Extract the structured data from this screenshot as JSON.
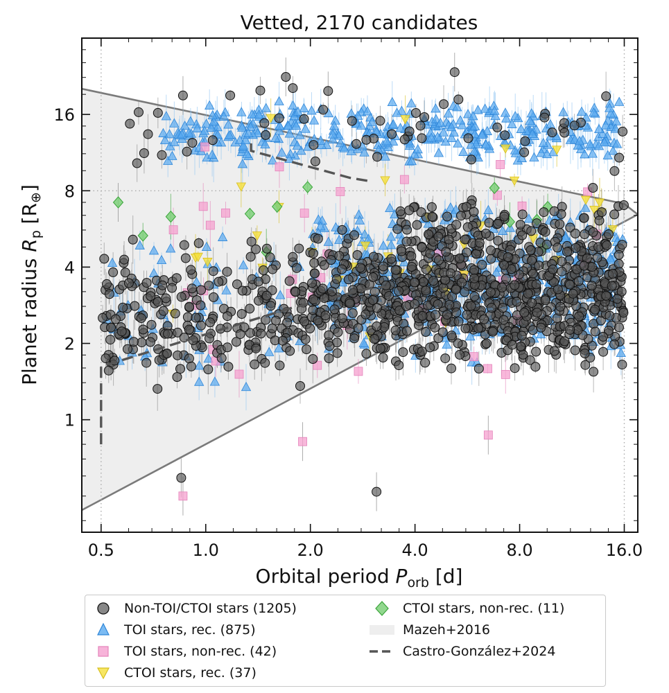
{
  "chart_data": {
    "type": "scatter",
    "title": "Vetted, 2170 candidates",
    "xlabel": "Orbital period P_orb [d]",
    "xlabel_main": "Orbital period ",
    "xlabel_sym": "P",
    "xlabel_sub": "orb",
    "xlabel_unit": " [d]",
    "ylabel_main": "Planet radius ",
    "ylabel_sym": "R",
    "ylabel_sub": "p",
    "ylabel_unit": " [R",
    "ylabel_unit_sub": "⊕",
    "ylabel_unit_end": "]",
    "x_scale": "log2",
    "y_scale": "log2",
    "xlim": [
      0.44,
      17.5
    ],
    "ylim": [
      0.36,
      32
    ],
    "x_ticks": [
      0.5,
      1.0,
      2.0,
      4.0,
      8.0,
      16.0
    ],
    "x_tick_labels": [
      "0.5",
      "1.0",
      "2.0",
      "4.0",
      "8.0",
      "16.0"
    ],
    "y_ticks": [
      1,
      2,
      4,
      8,
      16
    ],
    "y_tick_labels": [
      "1",
      "2",
      "4",
      "8",
      "16"
    ],
    "reference_lines": {
      "x": [
        0.5,
        16.0
      ],
      "y": [
        8
      ]
    },
    "grid": false,
    "legend_placement": "below plot",
    "mazeh_2016_polygon": [
      [
        0.44,
        20.2
      ],
      [
        16.0,
        7.1
      ],
      [
        17.5,
        6.45
      ],
      [
        0.44,
        0.44
      ]
    ],
    "castro_gonzalez_2024_line": [
      [
        0.5,
        0.8
      ],
      [
        0.5,
        1.62
      ],
      [
        1.75,
        2.75
      ],
      [
        3.1,
        3.35
      ],
      [
        3.5,
        3.3
      ]
    ],
    "castro_gonzalez_2024_upper": [
      [
        1.35,
        12.3
      ],
      [
        1.35,
        11.5
      ],
      [
        2.6,
        9.0
      ],
      [
        3.0,
        8.7
      ]
    ],
    "series": [
      {
        "name": "Non-TOI/CTOI stars (1205)",
        "marker": "circle",
        "color": "#555555",
        "edge": "#111111",
        "count": 1205
      },
      {
        "name": "TOI stars, rec. (875)",
        "marker": "triangle-up",
        "color": "#5aaaf0",
        "edge": "#2f86d8",
        "count": 875
      },
      {
        "name": "TOI stars, non-rec. (42)",
        "marker": "square",
        "color": "#f5a0cf",
        "edge": "#e484bb",
        "count": 42
      },
      {
        "name": "CTOI stars, rec. (37)",
        "marker": "triangle-down",
        "color": "#f5e03c",
        "edge": "#d7bf1f",
        "count": 37
      },
      {
        "name": "CTOI stars, non-rec. (11)",
        "marker": "diamond",
        "color": "#7ed07a",
        "edge": "#3aa53a",
        "count": 11
      }
    ],
    "legend_extra": [
      {
        "name": "Mazeh+2016",
        "style": "shaded-region",
        "color": "#eeeeee"
      },
      {
        "name": "Castro-González+2024",
        "style": "dashed-line",
        "color": "#555555"
      }
    ],
    "approx_point_clusters": [
      {
        "series": 0,
        "x_range": [
          0.5,
          0.75
        ],
        "y_range": [
          1.2,
          6.0
        ],
        "n": 70
      },
      {
        "series": 0,
        "x_range": [
          0.75,
          2.0
        ],
        "y_range": [
          1.3,
          5.5
        ],
        "n": 160
      },
      {
        "series": 0,
        "x_range": [
          2.0,
          3.5
        ],
        "y_range": [
          1.5,
          6.0
        ],
        "n": 170
      },
      {
        "series": 0,
        "x_range": [
          3.5,
          16.0
        ],
        "y_range": [
          1.5,
          7.5
        ],
        "n": 720
      },
      {
        "series": 0,
        "x_range": [
          0.6,
          16.0
        ],
        "y_range": [
          8.0,
          22.0
        ],
        "n": 55
      },
      {
        "series": 1,
        "x_range": [
          0.75,
          16.0
        ],
        "y_range": [
          10.0,
          18.5
        ],
        "n": 360
      },
      {
        "series": 1,
        "x_range": [
          2.0,
          16.0
        ],
        "y_range": [
          1.6,
          7.5
        ],
        "n": 380
      },
      {
        "series": 1,
        "x_range": [
          0.5,
          2.0
        ],
        "y_range": [
          1.2,
          6.0
        ],
        "n": 60
      },
      {
        "series": 2,
        "x_range": [
          0.8,
          15.0
        ],
        "y_range": [
          0.85,
          14.0
        ],
        "n": 42
      },
      {
        "series": 3,
        "x_range": [
          0.8,
          15.0
        ],
        "y_range": [
          1.6,
          18.0
        ],
        "n": 37
      },
      {
        "series": 4,
        "x_range": [
          0.55,
          13.0
        ],
        "y_range": [
          4.0,
          10.5
        ],
        "n": 11
      }
    ],
    "approx_highlight_points": [
      {
        "series": 0,
        "x": 3.1,
        "y": 0.52
      },
      {
        "series": 0,
        "x": 0.85,
        "y": 0.59
      },
      {
        "series": 0,
        "x": 1.7,
        "y": 22.5
      },
      {
        "series": 0,
        "x": 5.2,
        "y": 23.5
      },
      {
        "series": 0,
        "x": 0.86,
        "y": 19.0
      },
      {
        "series": 0,
        "x": 2.25,
        "y": 19.8
      },
      {
        "series": 2,
        "x": 0.86,
        "y": 0.5
      },
      {
        "series": 2,
        "x": 1.9,
        "y": 0.82
      },
      {
        "series": 2,
        "x": 6.5,
        "y": 0.87
      },
      {
        "series": 4,
        "x": 0.56,
        "y": 7.2
      }
    ]
  }
}
